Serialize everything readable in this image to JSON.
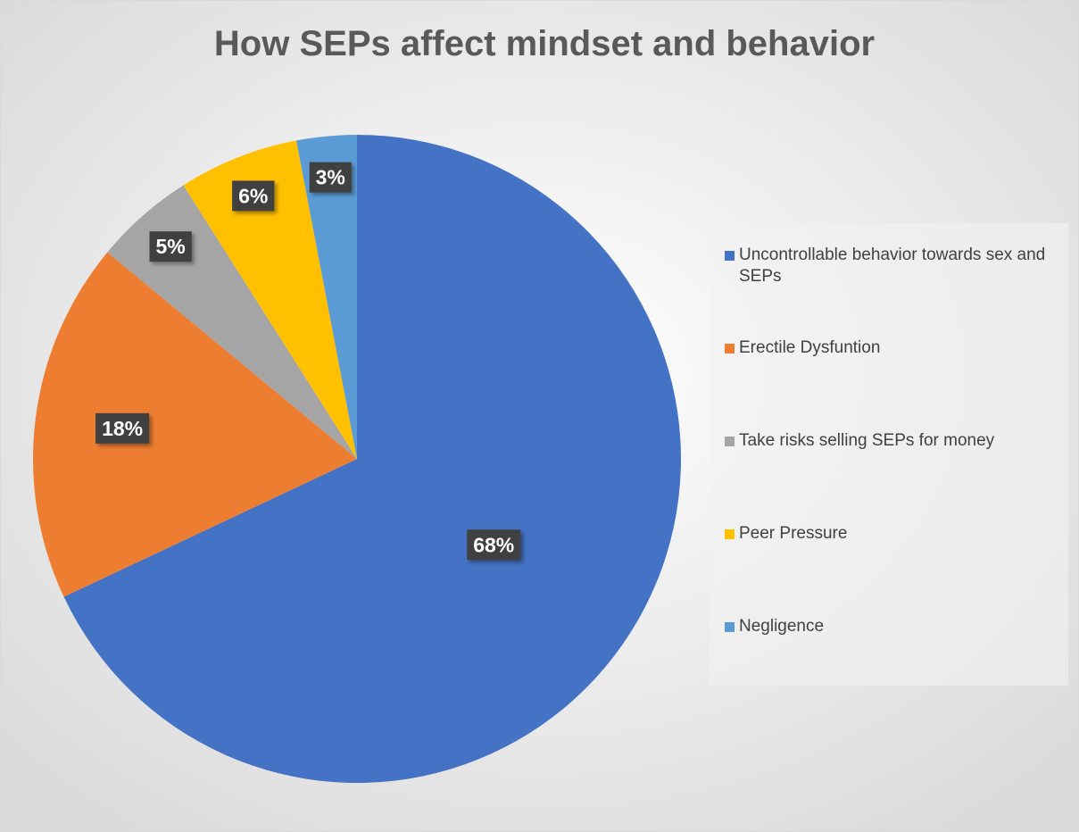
{
  "chart_data": {
    "type": "pie",
    "title": "How SEPs affect mindset and behavior",
    "categories": [
      "Uncontrollable behavior towards sex and SEPs",
      "Erectile Dysfuntion",
      "Take risks selling SEPs for money",
      "Peer Pressure",
      "Negligence"
    ],
    "values": [
      68,
      18,
      5,
      6,
      3
    ],
    "value_labels": [
      "68%",
      "18%",
      "5%",
      "6%",
      "3%"
    ],
    "colors": [
      "#4472c4",
      "#ed7d31",
      "#a5a5a5",
      "#ffc000",
      "#5b9bd5"
    ],
    "legend": "right"
  }
}
